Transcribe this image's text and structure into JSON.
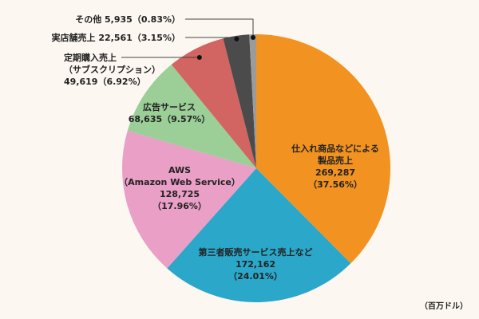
{
  "chart_data": {
    "type": "pie",
    "unit": "（百万ドル）",
    "start": "top",
    "direction": "clockwise",
    "slices": [
      {
        "label_lines": [
          "仕入れ商品などによる",
          "製品売上"
        ],
        "value": 269287,
        "value_text": "269,287",
        "percent_text": "（37.56%）",
        "percent": 37.56,
        "color": "#f29220"
      },
      {
        "label_lines": [
          "第三者販売サービス売上など"
        ],
        "value": 172162,
        "value_text": "172,162",
        "percent_text": "（24.01%）",
        "percent": 24.01,
        "color": "#2aa7c9"
      },
      {
        "label_lines": [
          "AWS",
          "（Amazon Web Service）"
        ],
        "value": 128725,
        "value_text": "128,725",
        "percent_text": "（17.96%）",
        "percent": 17.96,
        "color": "#e99fc6"
      },
      {
        "label_lines": [
          "広告サービス"
        ],
        "value": 68635,
        "value_text": "68,635",
        "percent_text": "（9.57%）",
        "percent": 9.57,
        "color": "#9bcf97"
      },
      {
        "label_lines": [
          "定期購入売上",
          "（サブスクリプション）"
        ],
        "value": 49619,
        "value_text": "49,619",
        "percent_text": "（6.92%）",
        "percent": 6.92,
        "color": "#d26461"
      },
      {
        "label_lines": [
          "実店舗売上"
        ],
        "value": 22561,
        "value_text": "22,561",
        "percent_text": "（3.15%）",
        "percent": 3.15,
        "color": "#4b4b4b"
      },
      {
        "label_lines": [
          "その他"
        ],
        "value": 5935,
        "value_text": "5,935",
        "percent_text": "（0.83%）",
        "percent": 0.83,
        "color": "#9b9b9b"
      }
    ]
  }
}
